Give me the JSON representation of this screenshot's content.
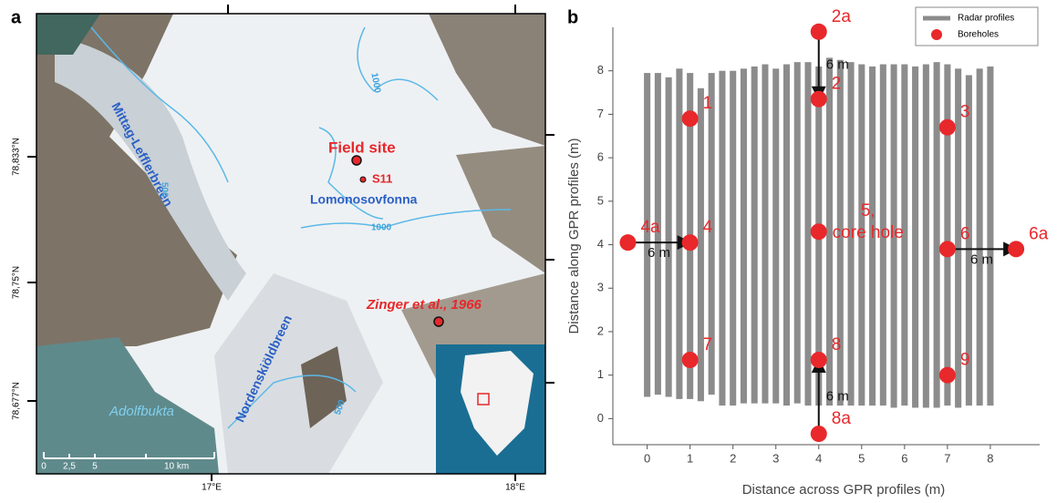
{
  "map": {
    "panel_label": "a",
    "lat_labels": [
      "78,833°N",
      "78,75°N",
      "78,677°N"
    ],
    "lon_labels": [
      "17°E",
      "18°E"
    ],
    "places": {
      "mittag": "Mittag-Lefflerbreen",
      "field_site": "Field site",
      "s11": "S11",
      "lomonosov": "Lomonosovfonna",
      "zinger": "Zinger et al., 1966",
      "nordenskiold": "Nordenskiöldbreen",
      "adolfbukta": "Adolfbukta"
    },
    "contours": [
      "1000",
      "1000",
      "500",
      "500"
    ],
    "scale": [
      "0",
      "2,5",
      "5",
      "10 km"
    ]
  },
  "chart_data": {
    "type": "profiles",
    "panel_label": "b",
    "xlabel": "Distance across GPR profiles (m)",
    "ylabel": "Distance along GPR profiles (m)",
    "xlim": [
      -0.8,
      9.15
    ],
    "ylim": [
      -0.6,
      9
    ],
    "xticks": [
      0,
      1,
      2,
      3,
      4,
      5,
      6,
      7,
      8
    ],
    "yticks": [
      0,
      1,
      2,
      3,
      4,
      5,
      6,
      7,
      8
    ],
    "legend": "upper right",
    "series": [
      {
        "name": "Radar profiles",
        "color": "#8c8c8c",
        "x": [
          0,
          0.25,
          0.5,
          0.75,
          1,
          1.25,
          1.5,
          1.75,
          2,
          2.25,
          2.5,
          2.75,
          3,
          3.25,
          3.5,
          3.75,
          4,
          4.25,
          4.5,
          4.75,
          5,
          5.25,
          5.5,
          5.75,
          6,
          6.25,
          6.5,
          6.75,
          7,
          7.25,
          7.5,
          7.75,
          8
        ],
        "bottom": [
          0.5,
          0.55,
          0.5,
          0.45,
          0.45,
          0.4,
          0.55,
          0.3,
          0.3,
          0.35,
          0.35,
          0.35,
          0.35,
          0.3,
          0.35,
          0.3,
          0.3,
          0.3,
          0.3,
          0.3,
          0.3,
          0.3,
          0.3,
          0.25,
          0.3,
          0.25,
          0.25,
          0.25,
          0.3,
          0.25,
          0.3,
          0.3,
          0.3
        ],
        "top": [
          7.95,
          7.95,
          7.85,
          8.05,
          7.95,
          7.6,
          7.95,
          8.0,
          8.0,
          8.05,
          8.1,
          8.15,
          8.05,
          8.15,
          8.2,
          8.2,
          8.1,
          8.3,
          8.25,
          8.2,
          8.15,
          8.1,
          8.15,
          8.15,
          8.15,
          8.1,
          8.15,
          8.2,
          8.15,
          8.05,
          7.9,
          8.05,
          8.1
        ]
      },
      {
        "name": "Boreholes",
        "color": "#e8282b",
        "x": [
          1,
          4,
          4,
          7,
          1,
          -0.45,
          4,
          7,
          8.6,
          1,
          4,
          4,
          7
        ],
        "y": [
          6.9,
          7.35,
          8.9,
          6.7,
          4.05,
          4.05,
          4.3,
          3.9,
          3.9,
          1.35,
          1.35,
          -0.35,
          1.0
        ],
        "labels": [
          "1",
          "2",
          "2a",
          "3",
          "4",
          "4a",
          [
            "5,",
            "core hole"
          ],
          "6",
          "6a",
          "7",
          "8",
          "8a",
          "9"
        ]
      }
    ],
    "annotations": [
      {
        "text": "6 m",
        "from": [
          4,
          8.9
        ],
        "to": [
          4,
          7.35
        ]
      },
      {
        "text": "6 m",
        "from": [
          -0.45,
          4.05
        ],
        "to": [
          1,
          4.05
        ]
      },
      {
        "text": "6 m",
        "from": [
          7,
          3.9
        ],
        "to": [
          8.6,
          3.9
        ]
      },
      {
        "text": "6 m",
        "from": [
          4,
          -0.35
        ],
        "to": [
          4,
          1.35
        ]
      }
    ]
  }
}
